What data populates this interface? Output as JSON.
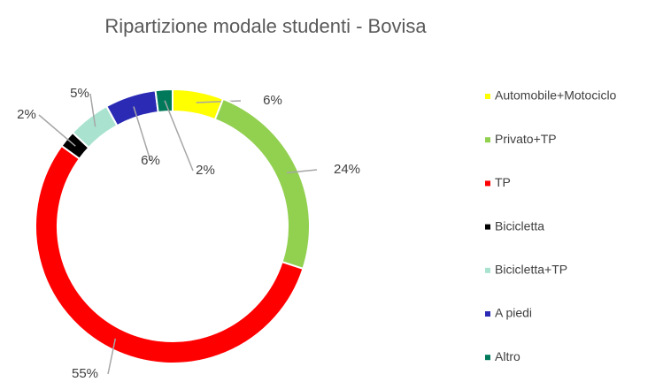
{
  "chart_data": {
    "type": "donut",
    "title": "Ripartizione modale studenti - Bovisa",
    "categories": [
      "Automobile+Motociclo",
      "Privato+TP",
      "TP",
      "Bicicletta",
      "Bicicletta+TP",
      "A piedi",
      "Altro"
    ],
    "values": [
      6,
      24,
      55,
      2,
      5,
      6,
      2
    ],
    "value_labels": [
      "6%",
      "24%",
      "55%",
      "2%",
      "5%",
      "6%",
      "2%"
    ],
    "colors": [
      "#ffff00",
      "#92d050",
      "#ff0000",
      "#000000",
      "#a9e3cf",
      "#2a2ab5",
      "#00795a"
    ],
    "legend": "right"
  }
}
